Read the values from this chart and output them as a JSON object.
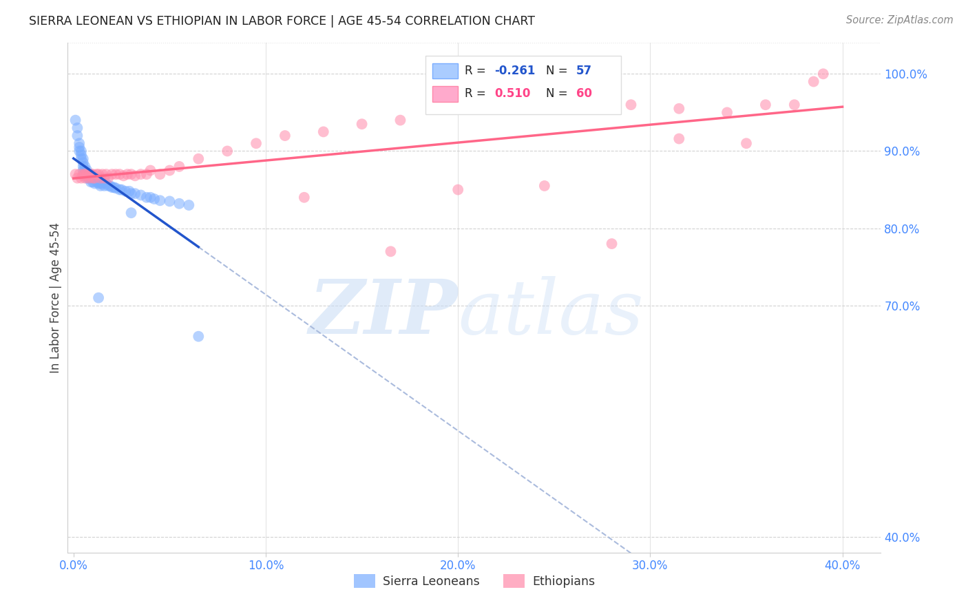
{
  "title": "SIERRA LEONEAN VS ETHIOPIAN IN LABOR FORCE | AGE 45-54 CORRELATION CHART",
  "source": "Source: ZipAtlas.com",
  "ylabel": "In Labor Force | Age 45-54",
  "watermark_zip": "ZIP",
  "watermark_atlas": "atlas",
  "legend_labels": [
    "Sierra Leoneans",
    "Ethiopians"
  ],
  "xlim": [
    -0.003,
    0.42
  ],
  "ylim": [
    0.38,
    1.04
  ],
  "yticks": [
    0.4,
    0.7,
    0.8,
    0.9,
    1.0
  ],
  "xticks": [
    0.0,
    0.1,
    0.2,
    0.3,
    0.4
  ],
  "scatter_alpha": 0.55,
  "scatter_size": 130,
  "blue_color": "#7aadff",
  "pink_color": "#ff8aaa",
  "blue_line_color": "#2255cc",
  "blue_dash_color": "#aabbdd",
  "pink_line_color": "#ff6688",
  "axis_tick_color": "#4488ff",
  "grid_color": "#cccccc",
  "title_color": "#222222",
  "source_color": "#888888",
  "legend_r1": "R = ",
  "legend_v1": "-0.261",
  "legend_n1": "N = ",
  "legend_nv1": "57",
  "legend_r2": "R = ",
  "legend_v2": "0.510",
  "legend_n2": "N = ",
  "legend_nv2": "60",
  "sierra_x": [
    0.001,
    0.002,
    0.002,
    0.003,
    0.003,
    0.003,
    0.004,
    0.004,
    0.004,
    0.005,
    0.005,
    0.005,
    0.005,
    0.006,
    0.006,
    0.006,
    0.007,
    0.007,
    0.007,
    0.008,
    0.008,
    0.009,
    0.009,
    0.009,
    0.01,
    0.01,
    0.011,
    0.011,
    0.012,
    0.013,
    0.014,
    0.014,
    0.015,
    0.016,
    0.017,
    0.018,
    0.019,
    0.02,
    0.021,
    0.022,
    0.024,
    0.025,
    0.027,
    0.029,
    0.03,
    0.032,
    0.035,
    0.038,
    0.04,
    0.042,
    0.045,
    0.05,
    0.055,
    0.06,
    0.013,
    0.03,
    0.065
  ],
  "sierra_y": [
    0.94,
    0.93,
    0.92,
    0.91,
    0.905,
    0.9,
    0.9,
    0.895,
    0.89,
    0.89,
    0.885,
    0.88,
    0.875,
    0.88,
    0.875,
    0.87,
    0.875,
    0.87,
    0.865,
    0.87,
    0.865,
    0.87,
    0.865,
    0.86,
    0.865,
    0.86,
    0.865,
    0.858,
    0.86,
    0.858,
    0.858,
    0.855,
    0.858,
    0.855,
    0.858,
    0.855,
    0.855,
    0.853,
    0.853,
    0.852,
    0.85,
    0.85,
    0.848,
    0.848,
    0.845,
    0.845,
    0.843,
    0.84,
    0.84,
    0.838,
    0.836,
    0.835,
    0.832,
    0.83,
    0.71,
    0.82,
    0.66
  ],
  "ethiopian_x": [
    0.001,
    0.002,
    0.003,
    0.004,
    0.005,
    0.005,
    0.006,
    0.006,
    0.007,
    0.008,
    0.008,
    0.009,
    0.01,
    0.01,
    0.011,
    0.012,
    0.013,
    0.014,
    0.015,
    0.016,
    0.017,
    0.018,
    0.02,
    0.022,
    0.024,
    0.026,
    0.028,
    0.03,
    0.032,
    0.035,
    0.038,
    0.04,
    0.045,
    0.05,
    0.055,
    0.065,
    0.08,
    0.095,
    0.11,
    0.13,
    0.15,
    0.17,
    0.19,
    0.215,
    0.24,
    0.265,
    0.29,
    0.315,
    0.34,
    0.36,
    0.375,
    0.385,
    0.39,
    0.35,
    0.315,
    0.28,
    0.245,
    0.2,
    0.165,
    0.12
  ],
  "ethiopian_y": [
    0.87,
    0.865,
    0.87,
    0.865,
    0.87,
    0.868,
    0.87,
    0.865,
    0.87,
    0.868,
    0.865,
    0.87,
    0.865,
    0.87,
    0.865,
    0.87,
    0.87,
    0.865,
    0.87,
    0.865,
    0.87,
    0.865,
    0.87,
    0.87,
    0.87,
    0.868,
    0.87,
    0.87,
    0.868,
    0.87,
    0.87,
    0.875,
    0.87,
    0.875,
    0.88,
    0.89,
    0.9,
    0.91,
    0.92,
    0.925,
    0.935,
    0.94,
    0.955,
    0.96,
    0.97,
    0.965,
    0.96,
    0.955,
    0.95,
    0.96,
    0.96,
    0.99,
    1.0,
    0.91,
    0.916,
    0.78,
    0.855,
    0.85,
    0.77,
    0.84
  ]
}
